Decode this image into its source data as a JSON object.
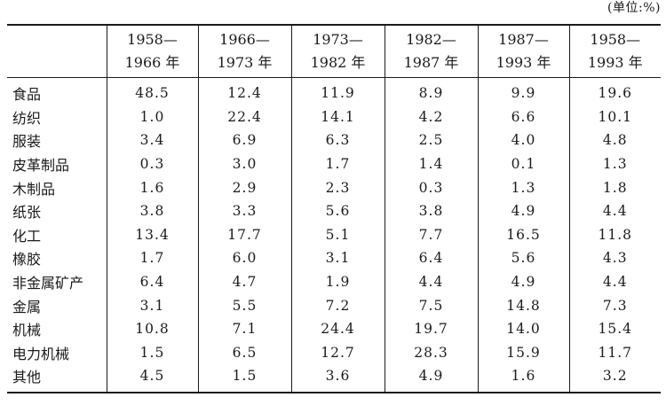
{
  "unit_note": "(单位:%)",
  "columns": [
    {
      "line1": "1958—",
      "line2": "1966 年"
    },
    {
      "line1": "1966—",
      "line2": "1973 年"
    },
    {
      "line1": "1973—",
      "line2": "1982 年"
    },
    {
      "line1": "1982—",
      "line2": "1987 年"
    },
    {
      "line1": "1987—",
      "line2": "1993 年"
    },
    {
      "line1": "1958—",
      "line2": "1993 年"
    }
  ],
  "rows": [
    {
      "label": "食品",
      "values": [
        "48.5",
        "12.4",
        "11.9",
        "8.9",
        "9.9",
        "19.6"
      ]
    },
    {
      "label": "纺织",
      "values": [
        "1.0",
        "22.4",
        "14.1",
        "4.2",
        "6.6",
        "10.1"
      ]
    },
    {
      "label": "服装",
      "values": [
        "3.4",
        "6.9",
        "6.3",
        "2.5",
        "4.0",
        "4.8"
      ]
    },
    {
      "label": "皮革制品",
      "values": [
        "0.3",
        "3.0",
        "1.7",
        "1.4",
        "0.1",
        "1.3"
      ]
    },
    {
      "label": "木制品",
      "values": [
        "1.6",
        "2.9",
        "2.3",
        "0.3",
        "1.3",
        "1.8"
      ]
    },
    {
      "label": "纸张",
      "values": [
        "3.8",
        "3.3",
        "5.6",
        "3.8",
        "4.9",
        "4.4"
      ]
    },
    {
      "label": "化工",
      "values": [
        "13.4",
        "17.7",
        "5.1",
        "7.7",
        "16.5",
        "11.8"
      ]
    },
    {
      "label": "橡胶",
      "values": [
        "1.7",
        "6.0",
        "3.1",
        "6.4",
        "5.6",
        "4.3"
      ]
    },
    {
      "label": "非金属矿产",
      "values": [
        "6.4",
        "4.7",
        "1.9",
        "4.4",
        "4.9",
        "4.4"
      ]
    },
    {
      "label": "金属",
      "values": [
        "3.1",
        "5.5",
        "7.2",
        "7.5",
        "14.8",
        "7.3"
      ]
    },
    {
      "label": "机械",
      "values": [
        "10.8",
        "7.1",
        "24.4",
        "19.7",
        "14.0",
        "15.4"
      ]
    },
    {
      "label": "电力机械",
      "values": [
        "1.5",
        "6.5",
        "12.7",
        "28.3",
        "15.9",
        "11.7"
      ]
    },
    {
      "label": "其他",
      "values": [
        "4.5",
        "1.5",
        "3.6",
        "4.9",
        "1.6",
        "3.2"
      ]
    }
  ]
}
